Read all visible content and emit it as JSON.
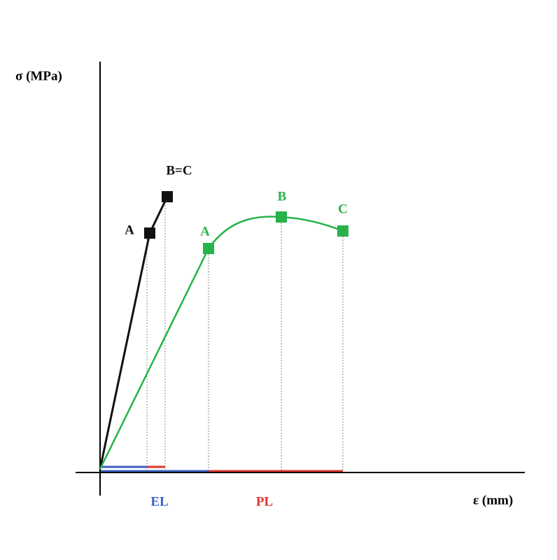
{
  "axes": {
    "y_label": "σ (MPa)",
    "x_label": "ε (mm)"
  },
  "black_curve": {
    "point_a": "A",
    "point_bc": "B=C"
  },
  "green_curve": {
    "point_a": "A",
    "point_b": "B",
    "point_c": "C"
  },
  "regions": {
    "elastic": "EL",
    "plastic": "PL"
  }
}
